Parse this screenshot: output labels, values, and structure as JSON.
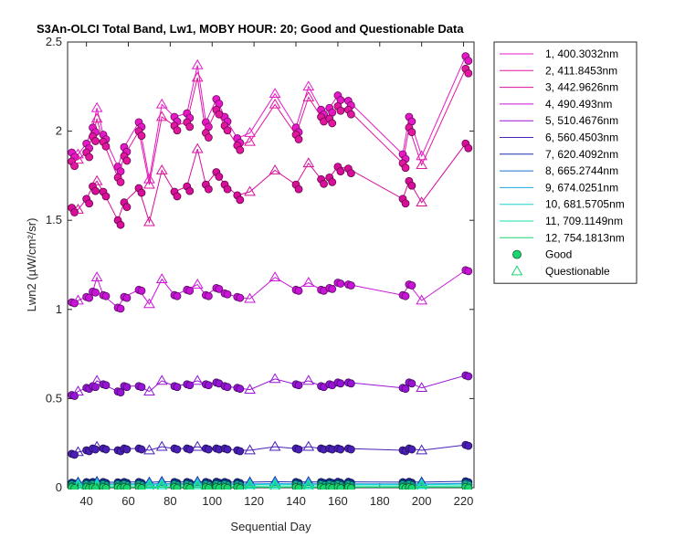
{
  "chart_data": {
    "type": "line",
    "title": "S3An-OLCI Total Band, Lw1, MOBY HOUR: 20;  Good and Questionable Data",
    "xlabel": "Sequential Day",
    "ylabel": "Lwn2 (µW/cm²/sr)",
    "xlim": [
      31,
      225
    ],
    "ylim": [
      0,
      2.5
    ],
    "xticks": [
      40,
      60,
      80,
      100,
      120,
      140,
      160,
      180,
      200,
      220
    ],
    "yticks": [
      0,
      0.5,
      1,
      1.5,
      2,
      2.5
    ],
    "x": [
      33,
      36,
      40,
      43,
      45,
      48,
      55,
      58,
      65,
      70,
      76,
      82,
      88,
      93,
      97,
      102,
      106,
      112,
      118,
      130,
      140,
      146,
      152,
      156,
      160,
      165,
      191,
      194,
      200,
      221
    ],
    "series": [
      {
        "name": "1, 400.3032nm",
        "color": "#e619c8",
        "values": [
          1.88,
          1.87,
          1.93,
          2.02,
          2.13,
          1.98,
          1.8,
          1.91,
          2.05,
          1.73,
          2.15,
          2.08,
          2.1,
          2.37,
          2.05,
          2.18,
          2.08,
          1.96,
          1.99,
          2.21,
          2.02,
          2.25,
          2.12,
          2.13,
          2.2,
          2.17,
          1.87,
          2.08,
          1.86,
          2.42
        ]
      },
      {
        "name": "2, 411.8453nm",
        "color": "#e2169f",
        "values": [
          1.83,
          1.84,
          1.88,
          1.97,
          2.07,
          1.94,
          1.74,
          1.86,
          2.0,
          1.7,
          2.08,
          2.03,
          2.05,
          2.3,
          1.99,
          2.12,
          2.03,
          1.92,
          1.94,
          2.15,
          1.98,
          2.19,
          2.08,
          2.07,
          2.14,
          2.12,
          1.82,
          2.02,
          1.81,
          2.35
        ]
      },
      {
        "name": "3, 442.9626nm",
        "color": "#d80e9a",
        "values": [
          1.57,
          1.56,
          1.62,
          1.69,
          1.72,
          1.66,
          1.5,
          1.6,
          1.68,
          1.49,
          1.78,
          1.66,
          1.69,
          1.9,
          1.7,
          1.77,
          1.7,
          1.64,
          1.66,
          1.78,
          1.7,
          1.82,
          1.73,
          1.74,
          1.8,
          1.79,
          1.62,
          1.72,
          1.6,
          1.93
        ]
      },
      {
        "name": "4,  490.493nm",
        "color": "#c914d8",
        "values": [
          1.04,
          1.05,
          1.07,
          1.1,
          1.18,
          1.08,
          1.01,
          1.07,
          1.11,
          1.03,
          1.17,
          1.08,
          1.11,
          1.14,
          1.08,
          1.12,
          1.09,
          1.07,
          1.06,
          1.18,
          1.11,
          1.15,
          1.11,
          1.12,
          1.15,
          1.14,
          1.08,
          1.14,
          1.05,
          1.22
        ]
      },
      {
        "name": "5, 510.4676nm",
        "color": "#9714d6",
        "values": [
          0.52,
          0.54,
          0.56,
          0.57,
          0.6,
          0.58,
          0.54,
          0.57,
          0.57,
          0.54,
          0.6,
          0.57,
          0.58,
          0.6,
          0.58,
          0.59,
          0.57,
          0.56,
          0.55,
          0.61,
          0.58,
          0.6,
          0.57,
          0.58,
          0.59,
          0.59,
          0.56,
          0.59,
          0.56,
          0.63
        ]
      },
      {
        "name": "6, 560.4503nm",
        "color": "#4a1fb8",
        "values": [
          0.19,
          0.2,
          0.21,
          0.22,
          0.23,
          0.22,
          0.21,
          0.22,
          0.22,
          0.21,
          0.23,
          0.22,
          0.22,
          0.23,
          0.22,
          0.22,
          0.22,
          0.21,
          0.21,
          0.23,
          0.22,
          0.23,
          0.22,
          0.22,
          0.22,
          0.22,
          0.21,
          0.22,
          0.21,
          0.24
        ]
      },
      {
        "name": "7, 620.4092nm",
        "color": "#1b2da8",
        "values": [
          0.028,
          0.03,
          0.031,
          0.032,
          0.034,
          0.032,
          0.03,
          0.032,
          0.032,
          0.03,
          0.034,
          0.032,
          0.032,
          0.034,
          0.032,
          0.033,
          0.032,
          0.031,
          0.031,
          0.034,
          0.032,
          0.033,
          0.032,
          0.032,
          0.033,
          0.033,
          0.031,
          0.033,
          0.031,
          0.036
        ]
      },
      {
        "name": "8, 665.2744nm",
        "color": "#1a6fcf",
        "values": [
          0.02,
          0.021,
          0.022,
          0.022,
          0.023,
          0.022,
          0.021,
          0.022,
          0.022,
          0.021,
          0.023,
          0.022,
          0.022,
          0.023,
          0.022,
          0.022,
          0.022,
          0.021,
          0.021,
          0.023,
          0.022,
          0.022,
          0.022,
          0.022,
          0.022,
          0.022,
          0.021,
          0.022,
          0.021,
          0.024
        ]
      },
      {
        "name": "9, 674.0251nm",
        "color": "#1aa8e0",
        "values": [
          0.018,
          0.019,
          0.02,
          0.02,
          0.021,
          0.02,
          0.019,
          0.02,
          0.02,
          0.019,
          0.021,
          0.02,
          0.02,
          0.021,
          0.02,
          0.02,
          0.02,
          0.019,
          0.019,
          0.021,
          0.02,
          0.02,
          0.02,
          0.02,
          0.02,
          0.02,
          0.019,
          0.02,
          0.019,
          0.022
        ]
      },
      {
        "name": "10, 681.5705nm",
        "color": "#1ad6d6",
        "values": [
          0.016,
          0.017,
          0.017,
          0.018,
          0.019,
          0.018,
          0.017,
          0.018,
          0.018,
          0.017,
          0.019,
          0.018,
          0.018,
          0.019,
          0.018,
          0.018,
          0.018,
          0.017,
          0.017,
          0.019,
          0.018,
          0.018,
          0.018,
          0.018,
          0.018,
          0.018,
          0.017,
          0.018,
          0.017,
          0.02
        ]
      },
      {
        "name": "11, 709.1149nm",
        "color": "#1ae0a8",
        "values": [
          0.008,
          0.009,
          0.009,
          0.01,
          0.01,
          0.01,
          0.009,
          0.01,
          0.01,
          0.009,
          0.01,
          0.01,
          0.01,
          0.01,
          0.01,
          0.01,
          0.01,
          0.009,
          0.009,
          0.01,
          0.01,
          0.01,
          0.01,
          0.01,
          0.01,
          0.01,
          0.009,
          0.01,
          0.009,
          0.011
        ]
      },
      {
        "name": "12, 754.1813nm",
        "color": "#1ad670",
        "values": [
          0.003,
          0.003,
          0.003,
          0.003,
          0.003,
          0.003,
          0.003,
          0.003,
          0.003,
          0.003,
          0.003,
          0.003,
          0.003,
          0.003,
          0.003,
          0.003,
          0.003,
          0.003,
          0.003,
          0.003,
          0.003,
          0.003,
          0.003,
          0.003,
          0.003,
          0.003,
          0.003,
          0.003,
          0.003,
          0.004
        ]
      }
    ],
    "legend": {
      "placement": "outside-right",
      "good_label": "Good",
      "questionable_label": "Questionable",
      "good_color": "#1ad670",
      "questionable_color": "#1ad670"
    }
  }
}
